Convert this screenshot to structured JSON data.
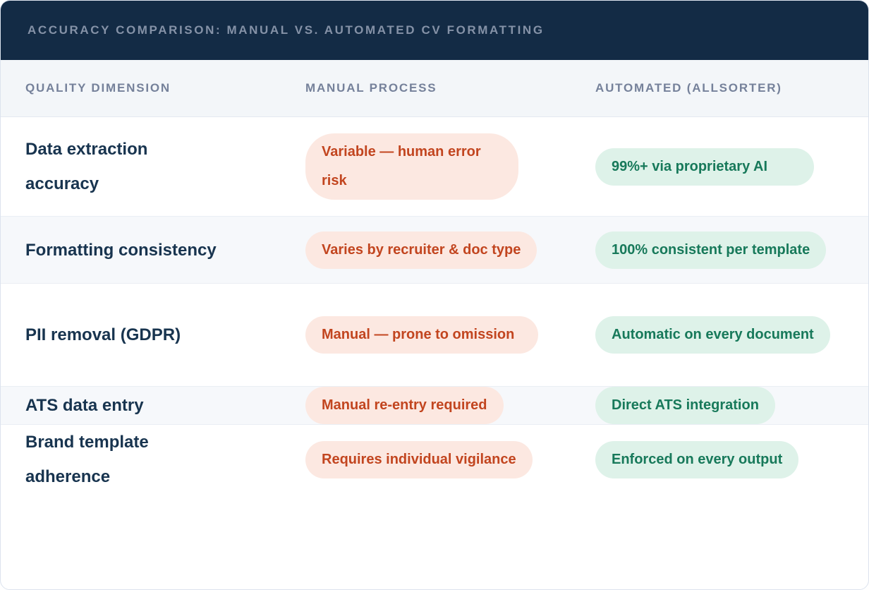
{
  "header": {
    "title": "ACCURACY COMPARISON: MANUAL VS. AUTOMATED CV FORMATTING"
  },
  "columns": [
    {
      "label": "QUALITY DIMENSION"
    },
    {
      "label": "MANUAL PROCESS"
    },
    {
      "label": "AUTOMATED (ALLSORTER)"
    }
  ],
  "rows": [
    {
      "dimension": "Data extraction accuracy",
      "manual": "Variable — human error risk",
      "automated": "99%+ via proprietary AI"
    },
    {
      "dimension": "Formatting consistency",
      "manual": "Varies by recruiter & doc type",
      "automated": "100% consistent per template"
    },
    {
      "dimension": "PII removal (GDPR)",
      "manual": "Manual — prone to omission",
      "automated": "Automatic on every document"
    },
    {
      "dimension": "ATS data entry",
      "manual": "Manual re-entry required",
      "automated": "Direct ATS integration"
    },
    {
      "dimension": "Brand template adherence",
      "manual": "Requires individual vigilance",
      "automated": "Enforced on every output"
    }
  ],
  "colors": {
    "header_bg": "#132b45",
    "header_title_text": "#8592a7",
    "column_header_text": "#75819a",
    "dimension_text": "#18344f",
    "manual_pill_bg": "#fce8e1",
    "manual_pill_text": "#c2451f",
    "automated_pill_bg": "#def2e9",
    "automated_pill_text": "#17795a",
    "alt_row_bg": "#f6f8fb"
  },
  "chart_data": {
    "type": "table",
    "title": "ACCURACY COMPARISON: MANUAL VS. AUTOMATED CV FORMATTING",
    "columns": [
      "QUALITY DIMENSION",
      "MANUAL PROCESS",
      "AUTOMATED (ALLSORTER)"
    ],
    "rows": [
      [
        "Data extraction accuracy",
        "Variable — human error risk",
        "99%+ via proprietary AI"
      ],
      [
        "Formatting consistency",
        "Varies by recruiter & doc type",
        "100% consistent per template"
      ],
      [
        "PII removal (GDPR)",
        "Manual — prone to omission",
        "Automatic on every document"
      ],
      [
        "ATS data entry",
        "Manual re-entry required",
        "Direct ATS integration"
      ],
      [
        "Brand template adherence",
        "Requires individual vigilance",
        "Enforced on every output"
      ]
    ],
    "legend": {
      "manual_style": "red pill = risk/limitation",
      "automated_style": "green pill = benefit"
    }
  }
}
